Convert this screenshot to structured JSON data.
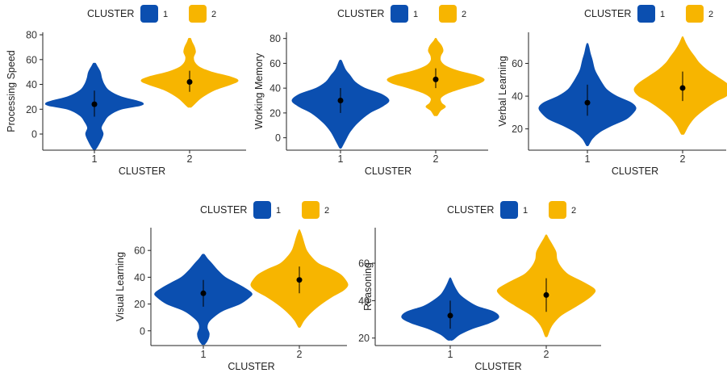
{
  "colors": {
    "cluster1": "#0b4fb0",
    "cluster2": "#f7b500",
    "point": "#000000"
  },
  "chart_data": [
    {
      "type": "violin",
      "legend": {
        "title": "CLUSTER",
        "labels": [
          "1",
          "2"
        ],
        "placement": "top"
      },
      "xlabel": "CLUSTER",
      "ylabel": "Processing Speed",
      "categories": [
        "1",
        "2"
      ],
      "yticks": [
        0,
        20,
        40,
        60,
        80
      ],
      "ylim": [
        -13,
        82
      ],
      "grid": false,
      "series": [
        {
          "name": "1",
          "min": -12,
          "max": 57,
          "mean": 24,
          "ci": [
            14,
            35
          ],
          "profile": [
            [
              -12,
              0.03
            ],
            [
              -6,
              0.12
            ],
            [
              0,
              0.18
            ],
            [
              5,
              0.14
            ],
            [
              10,
              0.2
            ],
            [
              15,
              0.3
            ],
            [
              20,
              0.55
            ],
            [
              23,
              0.95
            ],
            [
              25,
              1.0
            ],
            [
              27,
              0.85
            ],
            [
              30,
              0.55
            ],
            [
              35,
              0.3
            ],
            [
              40,
              0.2
            ],
            [
              45,
              0.15
            ],
            [
              50,
              0.12
            ],
            [
              55,
              0.05
            ],
            [
              57,
              0.02
            ]
          ]
        },
        {
          "name": "2",
          "min": 22,
          "max": 77,
          "mean": 42,
          "ci": [
            34,
            51
          ],
          "profile": [
            [
              22,
              0.04
            ],
            [
              28,
              0.2
            ],
            [
              32,
              0.35
            ],
            [
              36,
              0.55
            ],
            [
              40,
              0.85
            ],
            [
              43,
              1.0
            ],
            [
              46,
              0.85
            ],
            [
              50,
              0.45
            ],
            [
              54,
              0.2
            ],
            [
              58,
              0.1
            ],
            [
              62,
              0.08
            ],
            [
              66,
              0.12
            ],
            [
              70,
              0.1
            ],
            [
              74,
              0.05
            ],
            [
              77,
              0.02
            ]
          ]
        }
      ]
    },
    {
      "type": "violin",
      "legend": {
        "title": "CLUSTER",
        "labels": [
          "1",
          "2"
        ],
        "placement": "top"
      },
      "xlabel": "CLUSTER",
      "ylabel": "Working Memory",
      "categories": [
        "1",
        "2"
      ],
      "yticks": [
        0,
        20,
        40,
        60,
        80
      ],
      "ylim": [
        -10,
        85
      ],
      "grid": false,
      "series": [
        {
          "name": "1",
          "min": -8,
          "max": 62,
          "mean": 30,
          "ci": [
            20,
            40
          ],
          "profile": [
            [
              -8,
              0.02
            ],
            [
              -2,
              0.1
            ],
            [
              5,
              0.2
            ],
            [
              12,
              0.35
            ],
            [
              20,
              0.6
            ],
            [
              25,
              0.85
            ],
            [
              30,
              1.0
            ],
            [
              35,
              0.85
            ],
            [
              40,
              0.5
            ],
            [
              45,
              0.3
            ],
            [
              50,
              0.2
            ],
            [
              55,
              0.1
            ],
            [
              62,
              0.02
            ]
          ]
        },
        {
          "name": "2",
          "min": 18,
          "max": 80,
          "mean": 47,
          "ci": [
            40,
            56
          ],
          "profile": [
            [
              18,
              0.03
            ],
            [
              22,
              0.1
            ],
            [
              25,
              0.2
            ],
            [
              28,
              0.12
            ],
            [
              32,
              0.1
            ],
            [
              36,
              0.25
            ],
            [
              40,
              0.55
            ],
            [
              44,
              0.9
            ],
            [
              47,
              1.0
            ],
            [
              50,
              0.85
            ],
            [
              54,
              0.45
            ],
            [
              58,
              0.2
            ],
            [
              62,
              0.1
            ],
            [
              66,
              0.1
            ],
            [
              70,
              0.15
            ],
            [
              74,
              0.12
            ],
            [
              78,
              0.04
            ],
            [
              80,
              0.01
            ]
          ]
        }
      ]
    },
    {
      "type": "violin",
      "legend": {
        "title": "CLUSTER",
        "labels": [
          "1",
          "2"
        ],
        "placement": "top"
      },
      "xlabel": "CLUSTER",
      "ylabel": "Verbal Learning",
      "categories": [
        "1",
        "2"
      ],
      "yticks": [
        20,
        40,
        60
      ],
      "ylim": [
        7,
        79
      ],
      "grid": false,
      "series": [
        {
          "name": "1",
          "min": 10,
          "max": 72,
          "mean": 36,
          "ci": [
            28,
            47
          ],
          "profile": [
            [
              10,
              0.02
            ],
            [
              14,
              0.1
            ],
            [
              18,
              0.25
            ],
            [
              22,
              0.5
            ],
            [
              26,
              0.8
            ],
            [
              30,
              0.95
            ],
            [
              33,
              1.0
            ],
            [
              36,
              0.9
            ],
            [
              40,
              0.6
            ],
            [
              44,
              0.4
            ],
            [
              48,
              0.3
            ],
            [
              52,
              0.22
            ],
            [
              56,
              0.15
            ],
            [
              62,
              0.1
            ],
            [
              66,
              0.06
            ],
            [
              70,
              0.03
            ],
            [
              72,
              0.01
            ]
          ]
        },
        {
          "name": "2",
          "min": 17,
          "max": 76,
          "mean": 45,
          "ci": [
            37,
            55
          ],
          "profile": [
            [
              17,
              0.03
            ],
            [
              22,
              0.12
            ],
            [
              27,
              0.25
            ],
            [
              32,
              0.45
            ],
            [
              37,
              0.7
            ],
            [
              40,
              0.9
            ],
            [
              44,
              1.0
            ],
            [
              48,
              0.9
            ],
            [
              52,
              0.7
            ],
            [
              56,
              0.5
            ],
            [
              60,
              0.35
            ],
            [
              64,
              0.25
            ],
            [
              68,
              0.15
            ],
            [
              72,
              0.07
            ],
            [
              76,
              0.01
            ]
          ]
        }
      ]
    },
    {
      "type": "violin",
      "legend": {
        "title": "CLUSTER",
        "labels": [
          "1",
          "2"
        ],
        "placement": "top"
      },
      "xlabel": "CLUSTER",
      "ylabel": "Visual Learning",
      "categories": [
        "1",
        "2"
      ],
      "yticks": [
        0,
        20,
        40,
        60
      ],
      "ylim": [
        -11,
        77
      ],
      "grid": false,
      "series": [
        {
          "name": "1",
          "min": -10,
          "max": 57,
          "mean": 28,
          "ci": [
            18,
            38
          ],
          "profile": [
            [
              -10,
              0.03
            ],
            [
              -6,
              0.1
            ],
            [
              -2,
              0.12
            ],
            [
              2,
              0.08
            ],
            [
              6,
              0.1
            ],
            [
              10,
              0.2
            ],
            [
              15,
              0.4
            ],
            [
              20,
              0.75
            ],
            [
              25,
              0.95
            ],
            [
              28,
              1.0
            ],
            [
              32,
              0.85
            ],
            [
              36,
              0.65
            ],
            [
              40,
              0.45
            ],
            [
              45,
              0.3
            ],
            [
              50,
              0.18
            ],
            [
              54,
              0.08
            ],
            [
              57,
              0.02
            ]
          ]
        },
        {
          "name": "2",
          "min": 3,
          "max": 75,
          "mean": 38,
          "ci": [
            28,
            48
          ],
          "profile": [
            [
              3,
              0.02
            ],
            [
              8,
              0.1
            ],
            [
              14,
              0.25
            ],
            [
              20,
              0.45
            ],
            [
              26,
              0.7
            ],
            [
              30,
              0.9
            ],
            [
              34,
              1.0
            ],
            [
              38,
              0.95
            ],
            [
              42,
              0.85
            ],
            [
              46,
              0.65
            ],
            [
              50,
              0.4
            ],
            [
              55,
              0.25
            ],
            [
              60,
              0.15
            ],
            [
              65,
              0.1
            ],
            [
              70,
              0.06
            ],
            [
              75,
              0.01
            ]
          ]
        }
      ]
    },
    {
      "type": "violin",
      "legend": {
        "title": "CLUSTER",
        "labels": [
          "1",
          "2"
        ],
        "placement": "top"
      },
      "xlabel": "CLUSTER",
      "ylabel": "Reasoning",
      "categories": [
        "1",
        "2"
      ],
      "yticks": [
        20,
        40,
        60
      ],
      "ylim": [
        16,
        79
      ],
      "grid": false,
      "series": [
        {
          "name": "1",
          "min": 19,
          "max": 52,
          "mean": 32,
          "ci": [
            25,
            40
          ],
          "profile": [
            [
              19,
              0.05
            ],
            [
              22,
              0.2
            ],
            [
              25,
              0.45
            ],
            [
              28,
              0.8
            ],
            [
              31,
              1.0
            ],
            [
              34,
              0.9
            ],
            [
              37,
              0.55
            ],
            [
              40,
              0.35
            ],
            [
              43,
              0.2
            ],
            [
              46,
              0.12
            ],
            [
              49,
              0.06
            ],
            [
              52,
              0.01
            ]
          ]
        },
        {
          "name": "2",
          "min": 21,
          "max": 75,
          "mean": 43,
          "ci": [
            34,
            52
          ],
          "profile": [
            [
              21,
              0.02
            ],
            [
              25,
              0.08
            ],
            [
              28,
              0.15
            ],
            [
              32,
              0.3
            ],
            [
              36,
              0.55
            ],
            [
              40,
              0.8
            ],
            [
              43,
              0.95
            ],
            [
              46,
              1.0
            ],
            [
              50,
              0.75
            ],
            [
              54,
              0.45
            ],
            [
              58,
              0.3
            ],
            [
              62,
              0.22
            ],
            [
              66,
              0.2
            ],
            [
              70,
              0.12
            ],
            [
              73,
              0.05
            ],
            [
              75,
              0.01
            ]
          ]
        }
      ]
    }
  ]
}
